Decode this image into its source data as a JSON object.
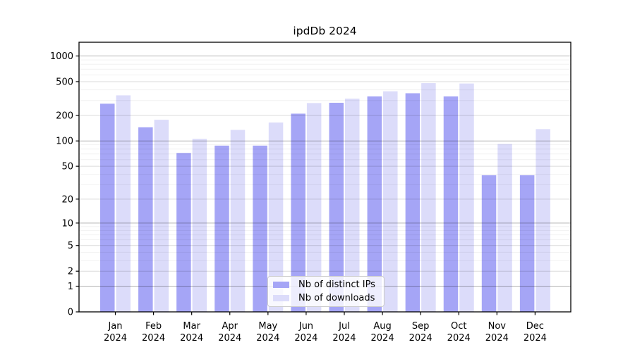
{
  "chart_data": {
    "type": "bar",
    "title": "ipdDb 2024",
    "categories": [
      "Jan",
      "Feb",
      "Mar",
      "Apr",
      "May",
      "Jun",
      "Jul",
      "Aug",
      "Sep",
      "Oct",
      "Nov",
      "Dec"
    ],
    "x_tick_year": "2024",
    "series": [
      {
        "name": "Nb of distinct IPs",
        "color": "#a5a5f6",
        "values": [
          275,
          145,
          72,
          88,
          88,
          210,
          282,
          335,
          365,
          335,
          39,
          39
        ]
      },
      {
        "name": "Nb of downloads",
        "color": "#dcdcfa",
        "values": [
          345,
          178,
          106,
          135,
          165,
          280,
          315,
          385,
          480,
          475,
          92,
          138
        ]
      }
    ],
    "y_scale": "log10(1+y)",
    "y_ticks": [
      0,
      1,
      2,
      5,
      10,
      20,
      50,
      100,
      200,
      500,
      1000
    ],
    "y_max": 1450,
    "grid": {
      "major_ticks": [
        1,
        10,
        100,
        1000
      ],
      "mid_ticks": [
        2,
        5,
        20,
        50,
        200,
        500
      ],
      "minor_ticks": [
        3,
        4,
        6,
        7,
        8,
        9,
        30,
        40,
        60,
        70,
        80,
        90,
        300,
        400,
        600,
        700,
        800,
        900
      ],
      "major_color": "rgba(0,0,0,0.30)",
      "mid_color": "rgba(0,0,0,0.14)",
      "minor_color": "rgba(0,0,0,0.055)"
    },
    "legend": {
      "position": "lower center"
    }
  }
}
